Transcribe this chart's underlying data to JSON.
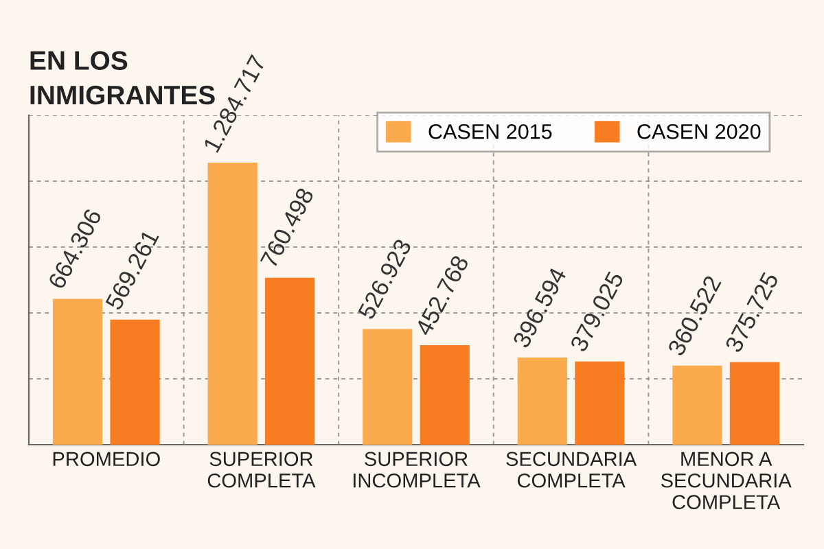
{
  "chart_data": {
    "type": "bar",
    "title": "EN LOS\nINMIGRANTES",
    "categories": [
      "PROMEDIO",
      "SUPERIOR\nCOMPLETA",
      "SUPERIOR\nINCOMPLETA",
      "SECUNDARIA\nCOMPLETA",
      "MENOR A\nSECUNDARIA\nCOMPLETA"
    ],
    "series": [
      {
        "name": "CASEN 2015",
        "color": "#fbaa4e",
        "values": [
          664306,
          1284717,
          526923,
          396594,
          360522
        ],
        "value_labels": [
          "664.306",
          "1.284.717",
          "526.923",
          "396.594",
          "360.522"
        ]
      },
      {
        "name": "CASEN 2020",
        "color": "#f77c22",
        "values": [
          569261,
          760498,
          452768,
          379025,
          375725
        ],
        "value_labels": [
          "569.261",
          "760.498",
          "452.768",
          "379.025",
          "375.725"
        ]
      }
    ],
    "ylim": [
      0,
      1500000
    ],
    "yticks": [
      {
        "value": 0,
        "label": null
      },
      {
        "value": 300000,
        "label": null
      },
      {
        "value": 600000,
        "label": null
      },
      {
        "value": 900000,
        "label": null
      },
      {
        "value": 1200000,
        "label": null
      },
      {
        "value": 1500000,
        "label": null
      }
    ],
    "tick_labels": "x",
    "grid": true,
    "legend": "top right"
  }
}
